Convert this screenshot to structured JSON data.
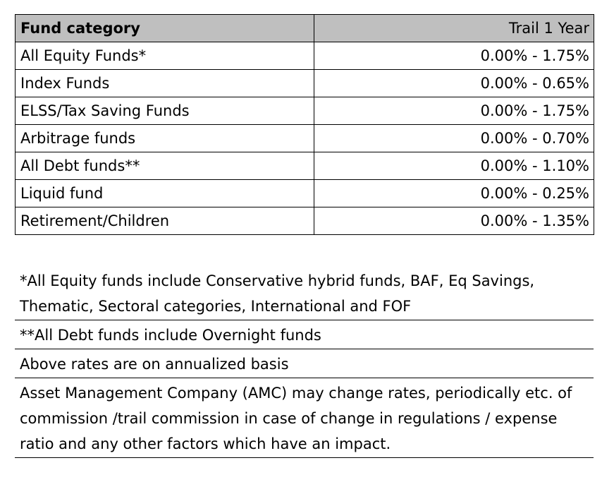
{
  "table": {
    "headers": {
      "category": "Fund category",
      "trail": "Trail 1 Year"
    },
    "rows": [
      {
        "category": "All Equity Funds*",
        "rate": "0.00% - 1.75%"
      },
      {
        "category": "Index Funds",
        "rate": "0.00% - 0.65%"
      },
      {
        "category": "ELSS/Tax Saving Funds",
        "rate": "0.00% - 1.75%"
      },
      {
        "category": "Arbitrage funds",
        "rate": "0.00% - 0.70%"
      },
      {
        "category": "All Debt funds**",
        "rate": "0.00% - 1.10%"
      },
      {
        "category": "Liquid fund",
        "rate": "0.00% - 0.25%"
      },
      {
        "category": "Retirement/Children",
        "rate": "0.00% - 1.35%"
      }
    ],
    "header_fill": "#bfbfbf"
  },
  "notes": [
    "*All Equity funds include Conservative hybrid funds, BAF, Eq Savings, Thematic, Sectoral categories, International and FOF",
    "**All Debt funds include Overnight funds",
    "Above rates are on annualized basis",
    "Asset Management Company (AMC) may change rates, periodically etc. of commission /trail commission in case of change in regulations / expense ratio and any other factors which have an impact."
  ]
}
